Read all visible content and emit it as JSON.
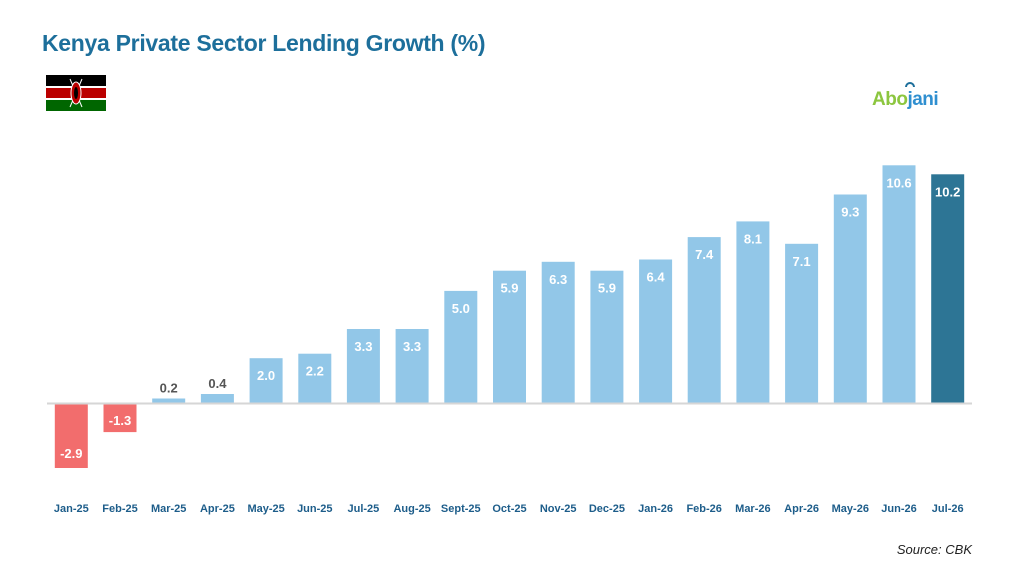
{
  "title": "Kenya Private Sector Lending Growth (%)",
  "logo": {
    "text_part1": "Abo",
    "text_part2": "jani",
    "tagline": ""
  },
  "source": "Source: CBK",
  "colors": {
    "positive": "#92c7e8",
    "negative": "#f26d6d",
    "highlight": "#2d7595",
    "title": "#1d6f9b",
    "axis_labels": "#1d5d8a",
    "label_light": "#ffffff",
    "label_dark": "#555555"
  },
  "chart_data": {
    "type": "bar",
    "title": "Kenya Private Sector Lending Growth (%)",
    "xlabel": "",
    "ylabel": "",
    "categories": [
      "Jan-25",
      "Feb-25",
      "Mar-25",
      "Apr-25",
      "May-25",
      "Jun-25",
      "Jul-25",
      "Aug-25",
      "Sept-25",
      "Oct-25",
      "Nov-25",
      "Dec-25",
      "Jan-26",
      "Feb-26",
      "Mar-26",
      "Apr-26",
      "May-26",
      "Jun-26",
      "Jul-26"
    ],
    "values": [
      -2.9,
      -1.3,
      0.2,
      0.4,
      2.0,
      2.2,
      3.3,
      3.3,
      5.0,
      5.9,
      6.3,
      5.9,
      6.4,
      7.4,
      8.1,
      7.1,
      9.3,
      10.6,
      10.2
    ],
    "data_labels": [
      "-2.9",
      "-1.3",
      "0.2",
      "0.4",
      "2.0",
      "2.2",
      "3.3",
      "3.3",
      "5.0",
      "5.9",
      "6.3",
      "5.9",
      "6.4",
      "7.4",
      "8.1",
      "7.1",
      "9.3",
      "10.6",
      "10.2"
    ],
    "highlight_index": 18,
    "ylim": [
      -4,
      11
    ],
    "grid": false,
    "legend": "none"
  }
}
